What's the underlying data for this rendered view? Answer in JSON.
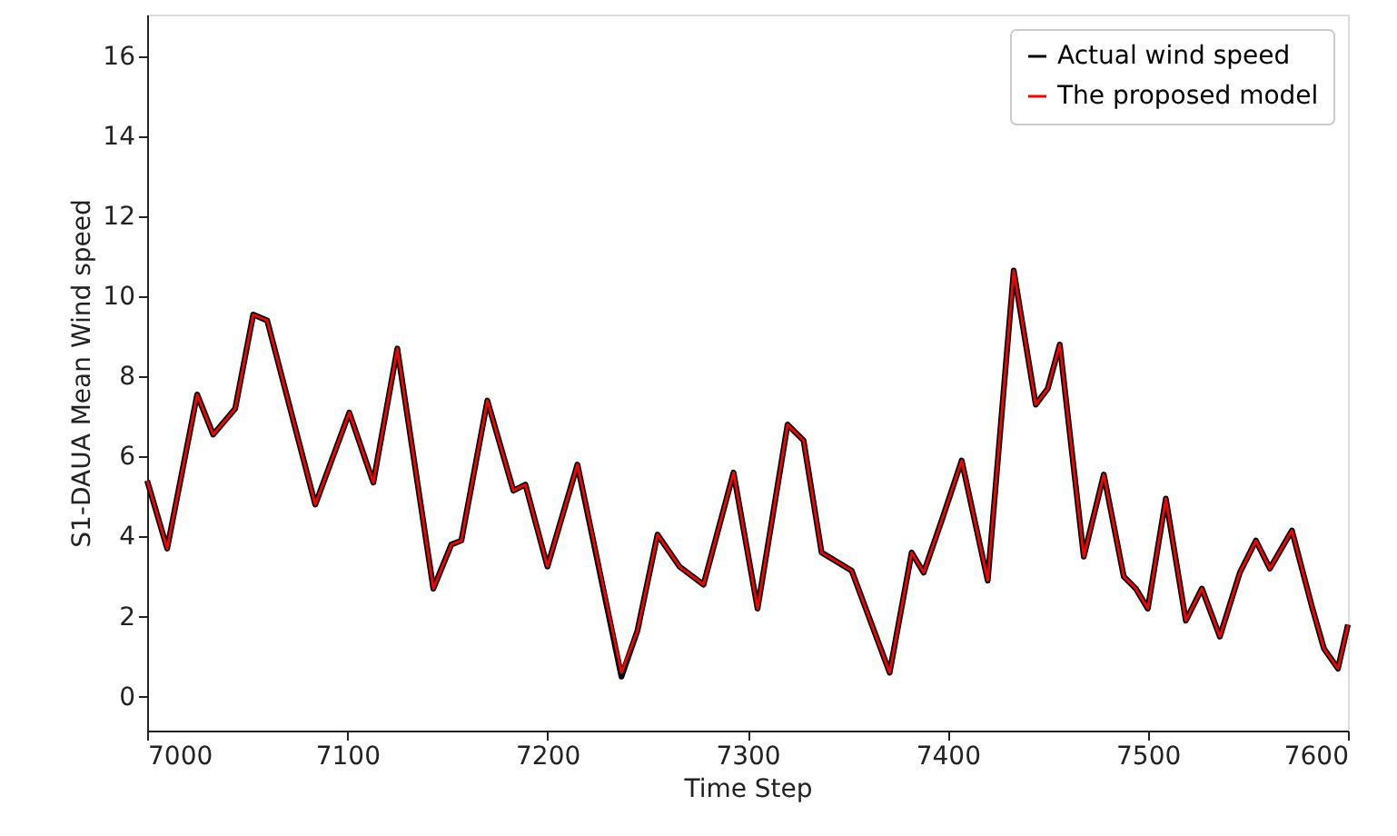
{
  "chart_data": {
    "type": "line",
    "xlabel": "Time Step",
    "ylabel": "S1-DAUA Mean Wind speed",
    "x": [
      7000,
      7010,
      7025,
      7033,
      7044,
      7053,
      7060,
      7084,
      7101,
      7113,
      7125,
      7143,
      7152,
      7157,
      7170,
      7183,
      7189,
      7200,
      7215,
      7237,
      7245,
      7255,
      7266,
      7278,
      7293,
      7305,
      7320,
      7328,
      7337,
      7352,
      7371,
      7382,
      7388,
      7397,
      7407,
      7420,
      7433,
      7444,
      7450,
      7456,
      7468,
      7478,
      7488,
      7494,
      7500,
      7509,
      7519,
      7527,
      7536,
      7546,
      7554,
      7561,
      7572,
      7582,
      7588,
      7595,
      7600
    ],
    "series": [
      {
        "name": "Actual wind speed",
        "color": "#000000",
        "values": [
          5.4,
          3.7,
          7.55,
          6.55,
          7.2,
          9.55,
          9.4,
          4.8,
          7.1,
          5.35,
          8.7,
          2.7,
          3.8,
          3.9,
          7.4,
          5.15,
          5.3,
          3.25,
          5.8,
          0.5,
          1.65,
          4.05,
          3.25,
          2.8,
          5.6,
          2.2,
          6.8,
          6.4,
          3.6,
          3.15,
          0.6,
          3.6,
          3.1,
          4.4,
          5.9,
          2.9,
          10.65,
          7.3,
          7.7,
          8.8,
          3.5,
          5.55,
          3.0,
          2.7,
          2.2,
          4.95,
          1.9,
          2.7,
          1.5,
          3.1,
          3.9,
          3.2,
          4.15,
          2.25,
          1.2,
          0.7,
          1.8
        ]
      },
      {
        "name": "The proposed model",
        "color": "#ff0000",
        "values": [
          5.4,
          3.7,
          7.55,
          6.55,
          7.2,
          9.55,
          9.4,
          4.8,
          7.1,
          5.35,
          8.7,
          2.7,
          3.8,
          3.9,
          7.4,
          5.15,
          5.3,
          3.25,
          5.8,
          0.6,
          1.65,
          4.05,
          3.25,
          2.8,
          5.6,
          2.2,
          6.8,
          6.4,
          3.6,
          3.15,
          0.6,
          3.6,
          3.1,
          4.4,
          5.9,
          2.9,
          10.65,
          7.3,
          7.7,
          8.8,
          3.5,
          5.55,
          3.0,
          2.7,
          2.2,
          4.95,
          1.9,
          2.7,
          1.5,
          3.1,
          3.9,
          3.2,
          4.15,
          2.25,
          1.2,
          0.7,
          1.8
        ]
      }
    ],
    "xlim": [
      7000,
      7600
    ],
    "xticks": [
      7000,
      7100,
      7200,
      7300,
      7400,
      7500,
      7600
    ],
    "ylim": [
      -0.85,
      17.05
    ],
    "yticks": [
      0,
      2,
      4,
      6,
      8,
      10,
      12,
      14,
      16
    ],
    "grid": false,
    "legend": "top right",
    "marker": "none",
    "line_style": "solid"
  }
}
